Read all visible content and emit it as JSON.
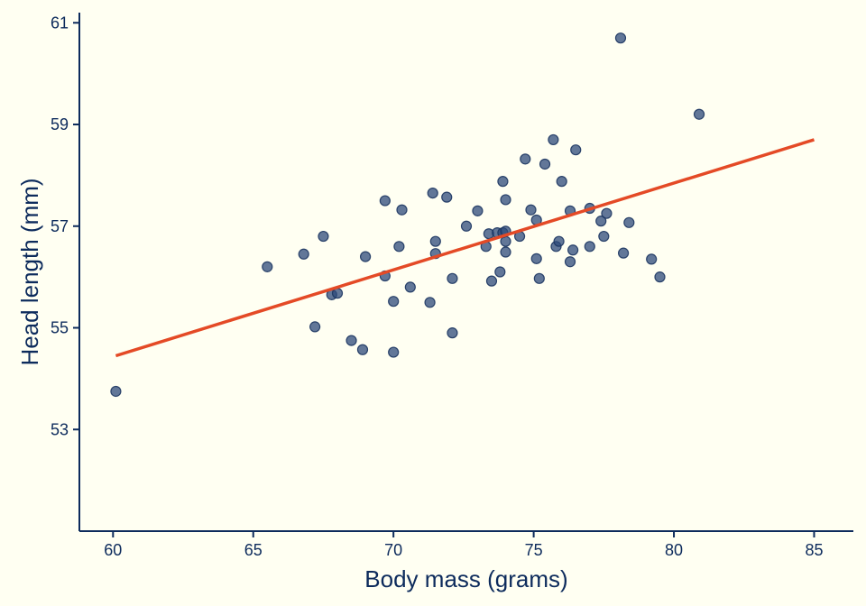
{
  "colors": {
    "background": "#fffff2",
    "axis": "#0d2b5c",
    "point": "#2e4a7a",
    "fit_line": "#e44a26"
  },
  "chart_data": {
    "type": "scatter",
    "title": "",
    "xlabel": "Body mass (grams)",
    "ylabel": "Head length (mm)",
    "xlim": [
      58.8,
      86.4
    ],
    "ylim": [
      51.0,
      61.2
    ],
    "xticks": [
      60,
      65,
      70,
      75,
      80,
      85
    ],
    "yticks": [
      53,
      55,
      57,
      59,
      61
    ],
    "grid": false,
    "legend": "none",
    "points": [
      [
        60.1,
        53.75
      ],
      [
        65.5,
        56.2
      ],
      [
        66.8,
        56.45
      ],
      [
        67.2,
        55.02
      ],
      [
        67.5,
        56.8
      ],
      [
        67.8,
        55.65
      ],
      [
        68.0,
        55.68
      ],
      [
        68.5,
        54.75
      ],
      [
        68.9,
        54.57
      ],
      [
        69.0,
        56.4
      ],
      [
        69.7,
        56.02
      ],
      [
        69.7,
        57.5
      ],
      [
        70.0,
        55.52
      ],
      [
        70.0,
        54.52
      ],
      [
        70.2,
        56.6
      ],
      [
        70.3,
        57.32
      ],
      [
        70.6,
        55.8
      ],
      [
        71.3,
        55.5
      ],
      [
        71.4,
        57.65
      ],
      [
        71.5,
        56.7
      ],
      [
        71.5,
        56.46
      ],
      [
        71.9,
        57.57
      ],
      [
        72.1,
        54.9
      ],
      [
        72.1,
        55.97
      ],
      [
        72.6,
        57.0
      ],
      [
        73.0,
        57.3
      ],
      [
        73.3,
        56.6
      ],
      [
        73.4,
        56.85
      ],
      [
        73.5,
        55.92
      ],
      [
        73.7,
        56.87
      ],
      [
        73.8,
        56.1
      ],
      [
        73.9,
        57.88
      ],
      [
        73.9,
        56.87
      ],
      [
        74.0,
        56.7
      ],
      [
        74.0,
        56.49
      ],
      [
        74.0,
        57.52
      ],
      [
        74.0,
        56.9
      ],
      [
        74.5,
        56.8
      ],
      [
        74.7,
        58.32
      ],
      [
        74.9,
        57.32
      ],
      [
        75.1,
        57.12
      ],
      [
        75.1,
        56.36
      ],
      [
        75.2,
        55.97
      ],
      [
        75.4,
        58.22
      ],
      [
        75.7,
        58.7
      ],
      [
        75.8,
        56.6
      ],
      [
        75.9,
        56.7
      ],
      [
        76.0,
        57.88
      ],
      [
        76.3,
        57.3
      ],
      [
        76.3,
        56.3
      ],
      [
        76.4,
        56.53
      ],
      [
        76.5,
        58.5
      ],
      [
        77.0,
        57.35
      ],
      [
        77.0,
        56.6
      ],
      [
        77.4,
        57.1
      ],
      [
        77.5,
        56.8
      ],
      [
        77.6,
        57.25
      ],
      [
        78.1,
        60.7
      ],
      [
        78.2,
        56.47
      ],
      [
        78.4,
        57.07
      ],
      [
        79.2,
        56.35
      ],
      [
        79.5,
        56.0
      ],
      [
        80.9,
        59.2
      ]
    ],
    "fit_line": {
      "x": [
        60.1,
        85.0
      ],
      "y": [
        54.45,
        58.7
      ]
    }
  }
}
